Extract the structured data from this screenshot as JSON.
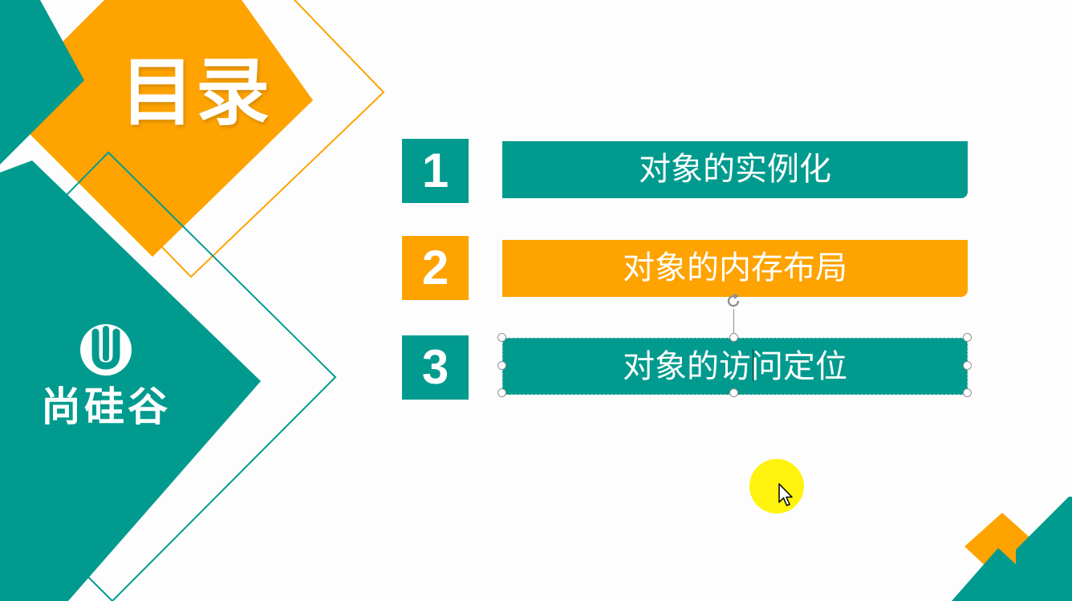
{
  "slide": {
    "title": "目录",
    "brand": {
      "name": "尚硅谷",
      "logo_icon": "u-logo-icon"
    },
    "items": [
      {
        "number": "1",
        "label": "对象的实例化",
        "color": "#009b8e"
      },
      {
        "number": "2",
        "label": "对象的内存布局",
        "color": "#fea300"
      },
      {
        "number": "3",
        "label": "对象的访问定位",
        "color": "#009b8e",
        "selected": true
      }
    ]
  },
  "colors": {
    "teal": "#009b8e",
    "orange": "#fea300",
    "highlight": "#fff200",
    "background": "#fdfdfd"
  },
  "icons": {
    "rotate": "rotate-handle-icon",
    "pointer": "mouse-pointer-icon"
  }
}
